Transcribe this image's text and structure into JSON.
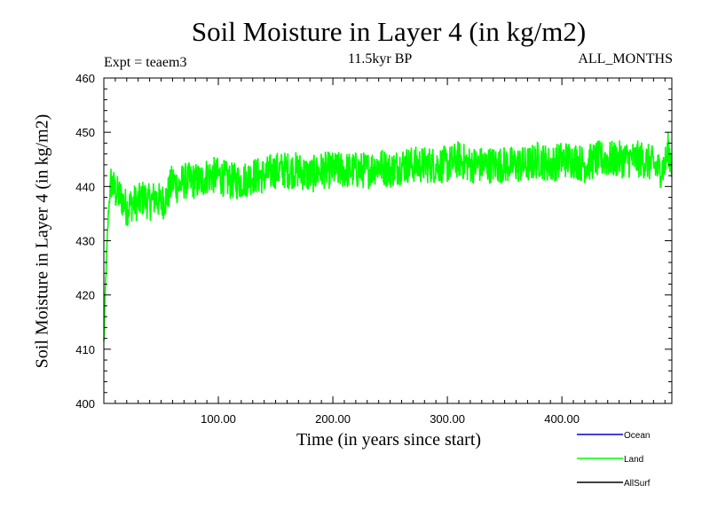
{
  "chart_data": {
    "type": "line",
    "title": "Soil Moisture in Layer 4 (in kg/m2)",
    "subtitle": "11.5kyr BP",
    "experiment_label": "Expt = teaem3",
    "period_label": "ALL_MONTHS",
    "xlabel": "Time (in years since start)",
    "ylabel": "Soil Moisture in Layer 4 (in kg/m2)",
    "xlim": [
      0,
      496
    ],
    "ylim": [
      400,
      460
    ],
    "x_ticks": [
      {
        "value": 100,
        "label": "100.00"
      },
      {
        "value": 200,
        "label": "200.00"
      },
      {
        "value": 300,
        "label": "300.00"
      },
      {
        "value": 400,
        "label": "400.00"
      }
    ],
    "y_ticks": [
      {
        "value": 400,
        "label": "400"
      },
      {
        "value": 410,
        "label": "410"
      },
      {
        "value": 420,
        "label": "420"
      },
      {
        "value": 430,
        "label": "430"
      },
      {
        "value": 440,
        "label": "440"
      },
      {
        "value": 450,
        "label": "450"
      },
      {
        "value": 460,
        "label": "460"
      }
    ],
    "legend": [
      {
        "name": "Ocean",
        "color": "#0000cc"
      },
      {
        "name": "Land",
        "color": "#00ff00"
      },
      {
        "name": "AllSurf",
        "color": "#000000"
      }
    ],
    "series": [
      {
        "name": "Land",
        "color": "#00ff00",
        "x": [
          0,
          2,
          4,
          6,
          8,
          10,
          15,
          20,
          25,
          30,
          35,
          40,
          45,
          50,
          55,
          60,
          65,
          70,
          75,
          80,
          85,
          90,
          95,
          100,
          110,
          120,
          130,
          140,
          150,
          160,
          170,
          180,
          190,
          200,
          210,
          220,
          230,
          240,
          250,
          260,
          270,
          280,
          290,
          300,
          310,
          320,
          330,
          340,
          350,
          360,
          370,
          380,
          390,
          400,
          410,
          420,
          430,
          440,
          450,
          460,
          470,
          480,
          485,
          490,
          493,
          496
        ],
        "values": [
          411,
          425,
          435,
          441,
          440,
          439,
          438,
          436,
          437,
          437,
          438,
          437,
          438,
          437,
          438,
          441,
          440,
          441,
          441,
          441,
          441,
          442,
          442,
          442,
          441,
          441,
          442,
          442,
          443,
          443,
          443,
          442,
          443,
          443,
          443,
          443,
          443,
          444,
          443,
          444,
          444,
          444,
          444,
          444,
          445,
          444,
          444,
          444,
          444,
          444,
          444,
          445,
          444,
          445,
          445,
          444,
          445,
          445,
          445,
          445,
          445,
          444,
          443,
          444,
          447,
          444
        ],
        "noise_amplitude": 3.5
      }
    ]
  }
}
